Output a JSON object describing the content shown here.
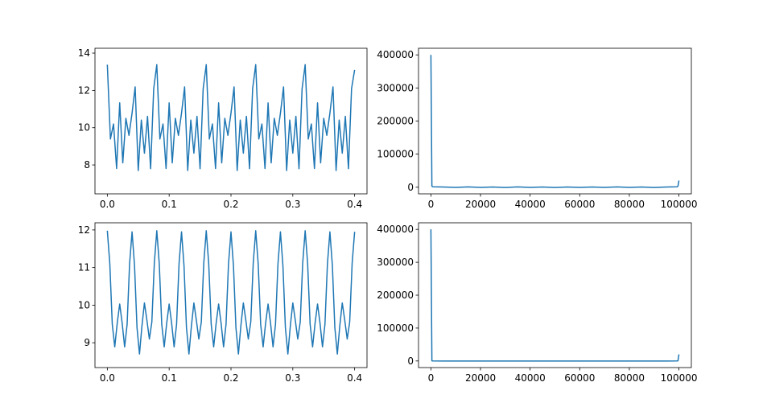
{
  "chart_data": [
    {
      "type": "line",
      "color": "#1f77b4",
      "xlim": [
        -0.02,
        0.42
      ],
      "ylim": [
        6.45,
        14.26
      ],
      "xticks": [
        {
          "value": 0,
          "label": "0.0"
        },
        0.1,
        0.2,
        0.3,
        0.4
      ],
      "yticks": [
        8,
        10,
        12,
        14
      ],
      "x": [
        0,
        0.005,
        0.01,
        0.015,
        0.02,
        0.025,
        0.03,
        0.035,
        0.04,
        0.045,
        0.05,
        0.055,
        0.06,
        0.065,
        0.07,
        0.075,
        0.08,
        0.085,
        0.09,
        0.095,
        0.1,
        0.105,
        0.11,
        0.115,
        0.12,
        0.125,
        0.13,
        0.135,
        0.14,
        0.145,
        0.15,
        0.155,
        0.16,
        0.165,
        0.17,
        0.175,
        0.18,
        0.185,
        0.19,
        0.195,
        0.2,
        0.205,
        0.21,
        0.215,
        0.22,
        0.225,
        0.23,
        0.235,
        0.24,
        0.245,
        0.25,
        0.255,
        0.26,
        0.265,
        0.27,
        0.275,
        0.28,
        0.285,
        0.29,
        0.295,
        0.3,
        0.305,
        0.31,
        0.315,
        0.32,
        0.325,
        0.33,
        0.335,
        0.34,
        0.345,
        0.35,
        0.355,
        0.36,
        0.365,
        0.37,
        0.375,
        0.38,
        0.385,
        0.39,
        0.395,
        0.4
      ],
      "values": [
        13.38,
        9.39,
        10.2,
        7.81,
        11.33,
        8.11,
        10.5,
        9.59,
        10.78,
        12.19,
        7.7,
        10.41,
        8.63,
        10.61,
        7.8,
        12.09,
        13.38,
        9.39,
        10.2,
        7.81,
        11.33,
        8.11,
        10.5,
        9.59,
        10.78,
        12.19,
        7.7,
        10.41,
        8.63,
        10.61,
        7.8,
        12.09,
        13.38,
        9.39,
        10.2,
        7.81,
        11.33,
        8.11,
        10.5,
        9.59,
        10.78,
        12.19,
        7.7,
        10.41,
        8.63,
        10.61,
        7.8,
        12.09,
        13.38,
        9.39,
        10.2,
        7.81,
        11.33,
        8.11,
        10.5,
        9.59,
        10.78,
        12.19,
        7.7,
        10.41,
        8.63,
        10.61,
        7.8,
        12.09,
        13.38,
        9.39,
        10.2,
        7.81,
        11.33,
        8.11,
        10.5,
        9.59,
        10.78,
        12.19,
        7.7,
        10.41,
        8.63,
        10.61,
        7.8,
        12.09,
        13.1
      ]
    },
    {
      "type": "line",
      "color": "#1f77b4",
      "xlim": [
        -5000,
        105000
      ],
      "ylim": [
        -20000,
        420000
      ],
      "xticks": [
        0,
        20000,
        40000,
        60000,
        80000,
        100000
      ],
      "yticks": [
        0,
        100000,
        200000,
        300000,
        400000
      ],
      "x": [
        0,
        400,
        800,
        5000,
        10000,
        15000,
        20000,
        25000,
        30000,
        35000,
        40000,
        45000,
        50000,
        55000,
        60000,
        65000,
        70000,
        75000,
        80000,
        85000,
        90000,
        95000,
        99200,
        99600,
        100000
      ],
      "values": [
        400000,
        3000,
        1200,
        800,
        -600,
        900,
        -700,
        600,
        -800,
        1000,
        -500,
        700,
        -900,
        600,
        -600,
        800,
        -700,
        900,
        -500,
        700,
        -800,
        600,
        1200,
        3000,
        20000
      ]
    },
    {
      "type": "line",
      "color": "#1f77b4",
      "xlim": [
        -0.02,
        0.42
      ],
      "ylim": [
        8.34,
        12.19
      ],
      "xticks": [
        {
          "value": 0,
          "label": "0.0"
        },
        0.1,
        0.2,
        0.3,
        0.4
      ],
      "yticks": [
        9,
        10,
        11,
        12
      ],
      "x": [
        0,
        0.004,
        0.008,
        0.012,
        0.016,
        0.02,
        0.024,
        0.028,
        0.032,
        0.036,
        0.04,
        0.044,
        0.048,
        0.052,
        0.056,
        0.06,
        0.064,
        0.068,
        0.072,
        0.076,
        0.08,
        0.084,
        0.088,
        0.092,
        0.096,
        0.1,
        0.104,
        0.108,
        0.112,
        0.116,
        0.12,
        0.124,
        0.128,
        0.132,
        0.136,
        0.14,
        0.144,
        0.148,
        0.152,
        0.156,
        0.16,
        0.164,
        0.168,
        0.172,
        0.176,
        0.18,
        0.184,
        0.188,
        0.192,
        0.196,
        0.2,
        0.204,
        0.208,
        0.212,
        0.216,
        0.22,
        0.224,
        0.228,
        0.232,
        0.236,
        0.24,
        0.244,
        0.248,
        0.252,
        0.256,
        0.26,
        0.264,
        0.268,
        0.272,
        0.276,
        0.28,
        0.284,
        0.288,
        0.292,
        0.296,
        0.3,
        0.304,
        0.308,
        0.312,
        0.316,
        0.32,
        0.324,
        0.328,
        0.332,
        0.336,
        0.34,
        0.344,
        0.348,
        0.352,
        0.356,
        0.36,
        0.364,
        0.368,
        0.372,
        0.376,
        0.38,
        0.384,
        0.388,
        0.392,
        0.396,
        0.4
      ],
      "values": [
        11.98,
        11.1,
        9.49,
        8.89,
        9.52,
        10.03,
        9.52,
        8.89,
        9.49,
        11.1,
        11.95,
        11.05,
        9.4,
        8.7,
        9.45,
        10.06,
        9.6,
        9.1,
        9.55,
        11.12,
        11.98,
        11.1,
        9.49,
        8.89,
        9.52,
        10.03,
        9.52,
        8.89,
        9.49,
        11.1,
        11.95,
        11.05,
        9.4,
        8.7,
        9.45,
        10.06,
        9.6,
        9.1,
        9.55,
        11.12,
        11.98,
        11.1,
        9.49,
        8.89,
        9.52,
        10.03,
        9.52,
        8.89,
        9.49,
        11.1,
        11.95,
        11.05,
        9.4,
        8.7,
        9.45,
        10.06,
        9.6,
        9.1,
        9.55,
        11.12,
        11.98,
        11.1,
        9.49,
        8.89,
        9.52,
        10.03,
        9.52,
        8.89,
        9.49,
        11.1,
        11.95,
        11.05,
        9.4,
        8.7,
        9.45,
        10.06,
        9.6,
        9.1,
        9.55,
        11.12,
        11.98,
        11.1,
        9.49,
        8.89,
        9.52,
        10.03,
        9.52,
        8.89,
        9.49,
        11.1,
        11.95,
        11.05,
        9.4,
        8.7,
        9.45,
        10.06,
        9.6,
        9.1,
        9.55,
        11.12,
        11.95
      ]
    },
    {
      "type": "line",
      "color": "#1f77b4",
      "xlim": [
        -5000,
        105000
      ],
      "ylim": [
        -20000,
        420000
      ],
      "xticks": [
        0,
        20000,
        40000,
        60000,
        80000,
        100000
      ],
      "yticks": [
        0,
        100000,
        200000,
        300000,
        400000
      ],
      "x": [
        0,
        400,
        800,
        5000,
        10000,
        15000,
        20000,
        25000,
        30000,
        35000,
        40000,
        45000,
        50000,
        55000,
        60000,
        65000,
        70000,
        75000,
        80000,
        85000,
        90000,
        95000,
        99200,
        99600,
        100000
      ],
      "values": [
        400000,
        500,
        100,
        0,
        0,
        0,
        0,
        0,
        0,
        0,
        0,
        0,
        0,
        0,
        0,
        0,
        0,
        0,
        0,
        0,
        0,
        0,
        100,
        500,
        20000
      ]
    }
  ]
}
